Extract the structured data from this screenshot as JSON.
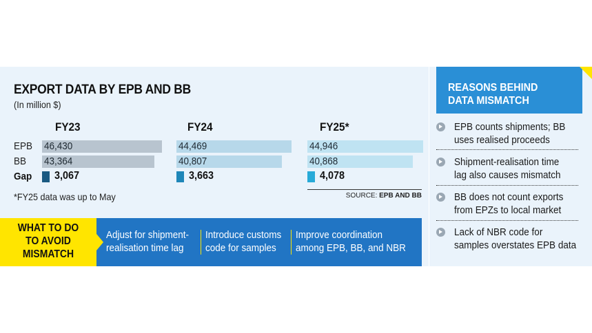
{
  "title": "EXPORT DATA BY EPB AND BB",
  "subtitle": "(In million $)",
  "row_labels": {
    "epb": "EPB",
    "bb": "BB",
    "gap": "Gap"
  },
  "colors": {
    "FY23": {
      "bar": "#b8c4cf",
      "gap": "#1a5a82"
    },
    "FY24": {
      "bar": "#b7d8ea",
      "gap": "#1e86b8"
    },
    "FY25": {
      "bar": "#bfe3f2",
      "gap": "#28aad8"
    }
  },
  "chart_data": {
    "type": "bar",
    "unit": "In million $",
    "categories": [
      "FY23",
      "FY24",
      "FY25*"
    ],
    "series": [
      {
        "name": "EPB",
        "values": [
          46430,
          44469,
          44946
        ],
        "labels": [
          "46,430",
          "44,469",
          "44,946"
        ]
      },
      {
        "name": "BB",
        "values": [
          43364,
          40807,
          40868
        ],
        "labels": [
          "43,364",
          "40,807",
          "40,868"
        ]
      }
    ],
    "gap": {
      "name": "Gap",
      "values": [
        3067,
        3663,
        4078
      ],
      "labels": [
        "3,067",
        "3,663",
        "4,078"
      ]
    }
  },
  "footnote": "*FY25 data was up to May",
  "source": {
    "prefix": "SOURCE:",
    "value": "EPB AND BB"
  },
  "todo": {
    "label_lines": [
      "WHAT TO DO",
      "TO AVOID",
      "MISMATCH"
    ],
    "items": [
      {
        "lines": [
          "Adjust for shipment-",
          "realisation time lag"
        ]
      },
      {
        "lines": [
          "Introduce customs",
          "code for samples"
        ]
      },
      {
        "lines": [
          "Improve coordination",
          "among EPB, BB, and NBR"
        ]
      }
    ]
  },
  "reasons": {
    "title_lines": [
      "REASONS BEHIND",
      "DATA MISMATCH"
    ],
    "items": [
      {
        "lines": [
          "EPB counts shipments; BB",
          "uses realised proceeds"
        ]
      },
      {
        "lines": [
          "Shipment-realisation time",
          "lag also causes mismatch"
        ]
      },
      {
        "lines": [
          "BB does not count exports",
          "from EPZs to local market"
        ]
      },
      {
        "lines": [
          "Lack of NBR code for",
          "samples overstates EPB data"
        ]
      }
    ]
  }
}
